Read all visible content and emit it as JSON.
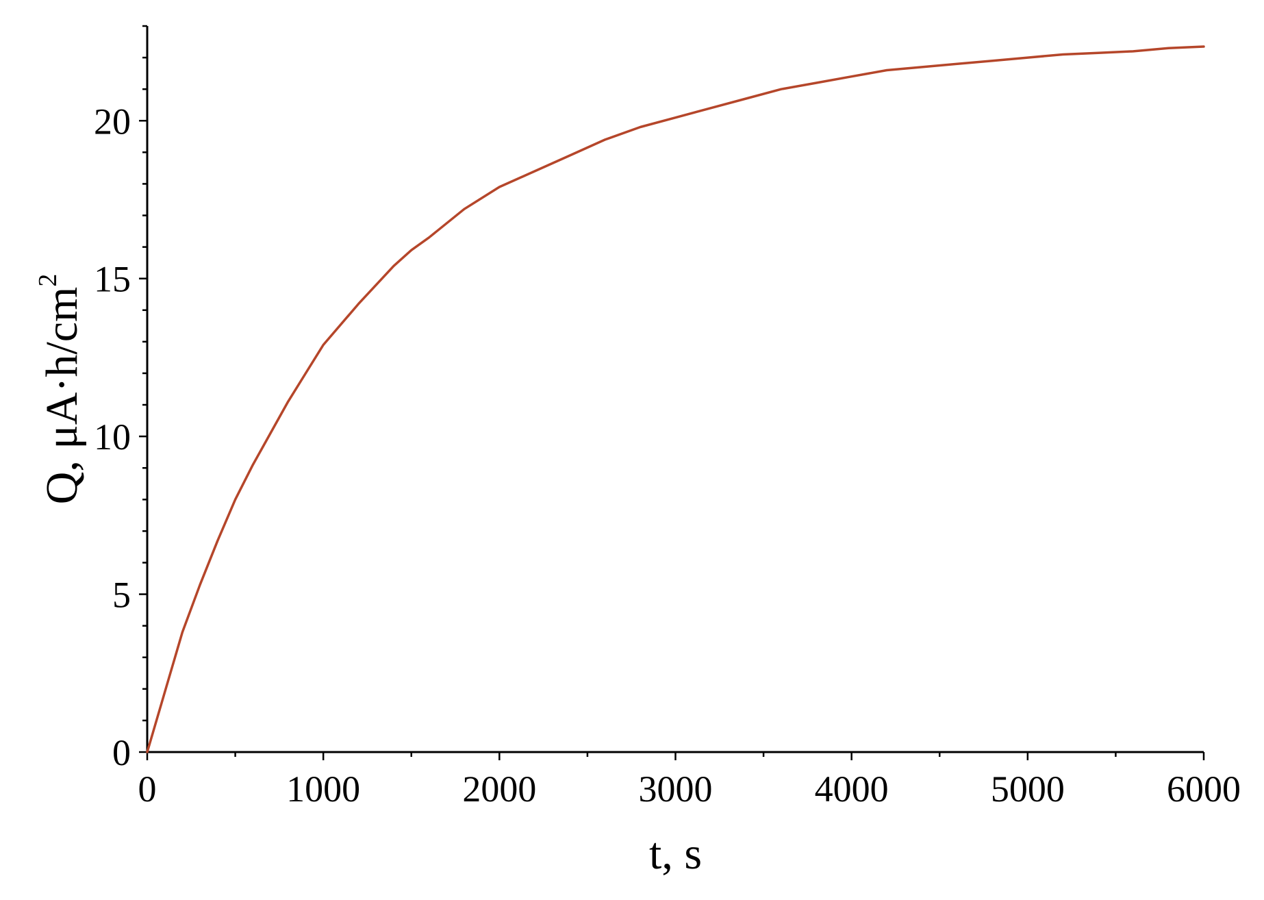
{
  "chart_data": {
    "type": "line",
    "title": "",
    "xlabel": "t, s",
    "ylabel_main": "Q, μA·h/cm",
    "ylabel_sup": "2",
    "xlim": [
      0,
      6000
    ],
    "ylim": [
      0,
      23
    ],
    "x_ticks": [
      0,
      1000,
      2000,
      3000,
      4000,
      5000,
      6000
    ],
    "x_tick_labels": [
      "0",
      "1000",
      "2000",
      "3000",
      "4000",
      "5000",
      "6000"
    ],
    "y_ticks": [
      0,
      5,
      10,
      15,
      20
    ],
    "y_tick_labels": [
      "0",
      "5",
      "10",
      "15",
      "20"
    ],
    "grid": false,
    "legend": "none",
    "colors": {
      "series": "#b5462a",
      "axis": "#000000"
    },
    "series": [
      {
        "x": [
          0,
          100,
          200,
          300,
          400,
          500,
          600,
          700,
          800,
          900,
          1000,
          1200,
          1400,
          1500,
          1600,
          1800,
          2000,
          2200,
          2400,
          2600,
          2800,
          3000,
          3200,
          3400,
          3600,
          3800,
          4000,
          4200,
          4400,
          4600,
          4800,
          5000,
          5200,
          5400,
          5600,
          5800,
          6000
        ],
        "y": [
          0,
          1.9,
          3.8,
          5.3,
          6.7,
          8.0,
          9.1,
          10.1,
          11.1,
          12.0,
          12.9,
          14.2,
          15.4,
          15.9,
          16.3,
          17.2,
          17.9,
          18.4,
          18.9,
          19.4,
          19.8,
          20.1,
          20.4,
          20.7,
          21.0,
          21.2,
          21.4,
          21.6,
          21.7,
          21.8,
          21.9,
          22.0,
          22.1,
          22.15,
          22.2,
          22.3,
          22.35
        ]
      }
    ]
  }
}
